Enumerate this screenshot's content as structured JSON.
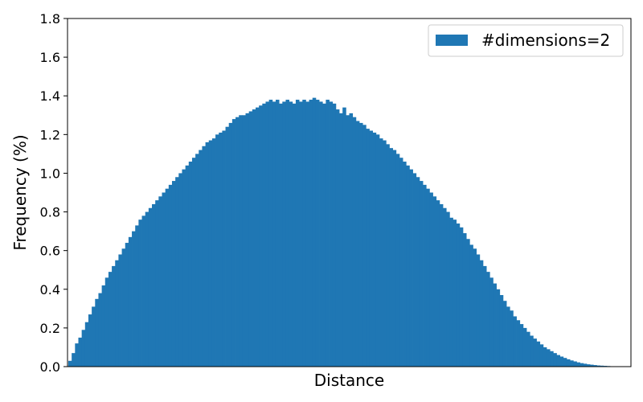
{
  "chart_data": {
    "type": "bar",
    "histogram": true,
    "xlabel": "Distance",
    "ylabel": "Frequency (%)",
    "ylim": [
      0,
      1.8
    ],
    "yticks": [
      "0.0",
      "0.2",
      "0.4",
      "0.6",
      "0.8",
      "1.0",
      "1.2",
      "1.4",
      "1.6",
      "1.8"
    ],
    "xticks_shown": false,
    "grid": false,
    "legend": {
      "position": "top-right"
    },
    "series": [
      {
        "name": "#dimensions=2",
        "color": "#1f77b4",
        "values": [
          0.03,
          0.07,
          0.12,
          0.15,
          0.19,
          0.23,
          0.27,
          0.31,
          0.35,
          0.38,
          0.42,
          0.46,
          0.49,
          0.52,
          0.55,
          0.58,
          0.61,
          0.64,
          0.67,
          0.7,
          0.73,
          0.76,
          0.78,
          0.8,
          0.82,
          0.84,
          0.86,
          0.88,
          0.9,
          0.92,
          0.94,
          0.96,
          0.98,
          1.0,
          1.02,
          1.04,
          1.06,
          1.08,
          1.1,
          1.12,
          1.14,
          1.16,
          1.17,
          1.18,
          1.2,
          1.21,
          1.22,
          1.24,
          1.26,
          1.28,
          1.29,
          1.3,
          1.3,
          1.31,
          1.32,
          1.33,
          1.34,
          1.35,
          1.36,
          1.37,
          1.38,
          1.37,
          1.38,
          1.36,
          1.37,
          1.38,
          1.37,
          1.36,
          1.38,
          1.37,
          1.38,
          1.37,
          1.38,
          1.39,
          1.38,
          1.37,
          1.36,
          1.38,
          1.37,
          1.36,
          1.33,
          1.31,
          1.34,
          1.3,
          1.31,
          1.29,
          1.27,
          1.26,
          1.25,
          1.23,
          1.22,
          1.21,
          1.2,
          1.18,
          1.17,
          1.15,
          1.13,
          1.12,
          1.1,
          1.08,
          1.06,
          1.04,
          1.02,
          1.0,
          0.98,
          0.96,
          0.94,
          0.92,
          0.9,
          0.88,
          0.86,
          0.84,
          0.82,
          0.8,
          0.77,
          0.76,
          0.74,
          0.72,
          0.69,
          0.66,
          0.63,
          0.61,
          0.58,
          0.55,
          0.52,
          0.49,
          0.46,
          0.43,
          0.4,
          0.37,
          0.34,
          0.31,
          0.29,
          0.26,
          0.24,
          0.22,
          0.2,
          0.18,
          0.16,
          0.145,
          0.13,
          0.115,
          0.1,
          0.09,
          0.08,
          0.07,
          0.06,
          0.052,
          0.045,
          0.038,
          0.032,
          0.027,
          0.022,
          0.018,
          0.015,
          0.012,
          0.01,
          0.008,
          0.006,
          0.005,
          0.004,
          0.003,
          0.002,
          0.0015,
          0.001,
          0.0008,
          0.0005,
          0.0003
        ]
      }
    ]
  }
}
